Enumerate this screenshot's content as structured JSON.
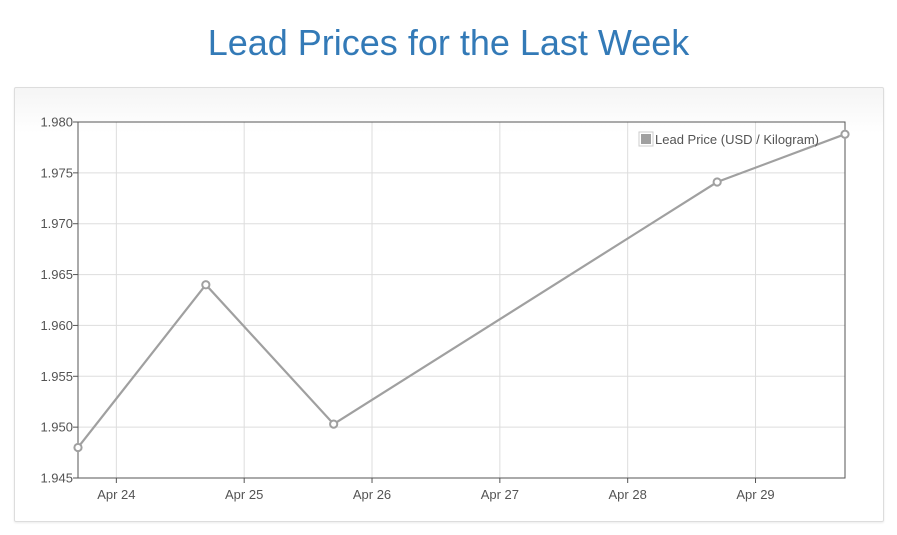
{
  "page": {
    "title": "Lead Prices for the Last Week"
  },
  "chart_data": {
    "type": "line",
    "title": "",
    "xlabel": "",
    "ylabel": "",
    "x_tick_labels": [
      "Apr 24",
      "Apr 25",
      "Apr 26",
      "Apr 27",
      "Apr 28",
      "Apr 29"
    ],
    "y_tick_labels": [
      "1.945",
      "1.950",
      "1.955",
      "1.960",
      "1.965",
      "1.970",
      "1.975",
      "1.980"
    ],
    "ylim": [
      1.945,
      1.98
    ],
    "xlim_days": [
      23.7,
      29.7
    ],
    "grid": true,
    "legend_position": "top-right",
    "series": [
      {
        "name": "Lead Price (USD / Kilogram)",
        "color": "#a0a0a0",
        "x": [
          "Apr 23",
          "Apr 24",
          "Apr 25",
          "Apr 28",
          "Apr 29"
        ],
        "x_day": [
          23.7,
          24.7,
          25.7,
          28.7,
          29.7
        ],
        "values": [
          1.948,
          1.964,
          1.9503,
          1.9741,
          1.9788
        ]
      }
    ],
    "colors": {
      "title": "#337ab7",
      "axis": "#555555",
      "grid": "#dddddd",
      "tick_text": "#545454"
    }
  }
}
